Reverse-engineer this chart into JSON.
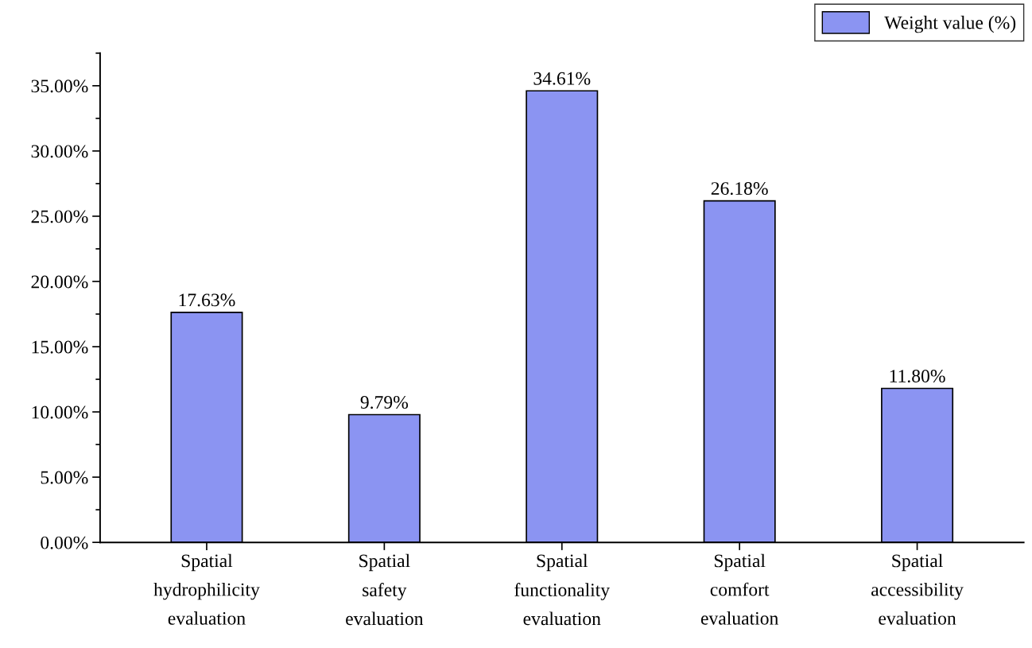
{
  "chart_data": {
    "type": "bar",
    "categories": [
      "Spatial\nhydrophilicity\nevaluation",
      "Spatial\nsafety\nevaluation",
      "Spatial\nfunctionality\nevaluation",
      "Spatial\ncomfort\nevaluation",
      "Spatial\naccessibility\nevaluation"
    ],
    "series": [
      {
        "name": "Weight value (%)",
        "color": "#8b94f2",
        "values": [
          17.63,
          9.79,
          34.61,
          26.18,
          11.8
        ],
        "value_labels": [
          "17.63%",
          "9.79%",
          "34.61%",
          "26.18%",
          "11.80%"
        ]
      }
    ],
    "ylim": [
      0,
      37.5
    ],
    "yticks": [
      {
        "value": 0,
        "label": "0.00%"
      },
      {
        "value": 5,
        "label": "5.00%"
      },
      {
        "value": 10,
        "label": "10.00%"
      },
      {
        "value": 15,
        "label": "15.00%"
      },
      {
        "value": 20,
        "label": "20.00%"
      },
      {
        "value": 25,
        "label": "25.00%"
      },
      {
        "value": 30,
        "label": "30.00%"
      },
      {
        "value": 35,
        "label": "35.00%"
      }
    ],
    "grid": false,
    "legend": "top right"
  }
}
